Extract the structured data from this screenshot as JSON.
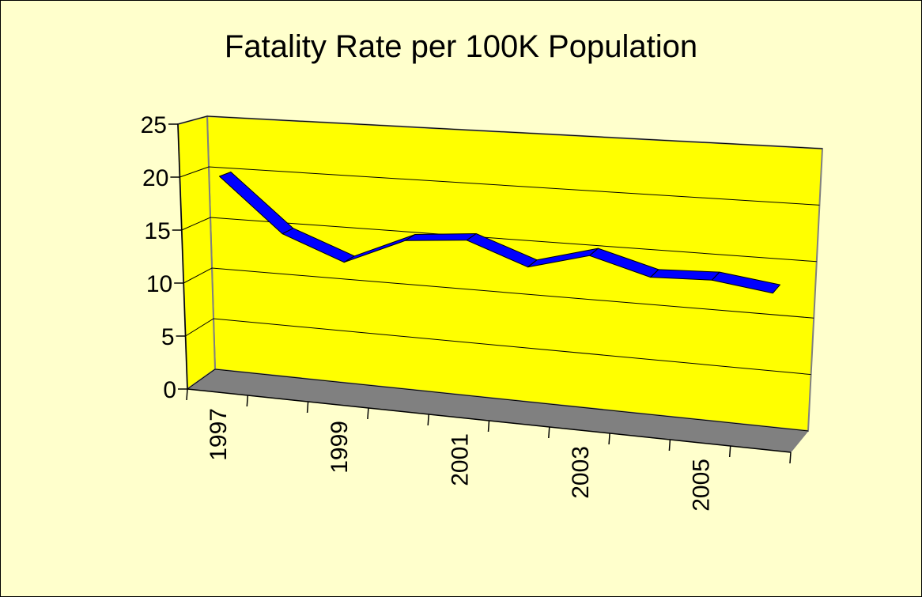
{
  "chart_data": {
    "type": "line",
    "title": "Fatality Rate per 100K Population",
    "categories": [
      "1997",
      null,
      "1999",
      null,
      "2001",
      null,
      "2003",
      null,
      "2005",
      null
    ],
    "series": [
      {
        "color": "#0000ff",
        "values": [
          20,
          15,
          12.8,
          15.3,
          15.8,
          13.8,
          15.3,
          13.8,
          14,
          13.3
        ]
      }
    ],
    "ylim": [
      0,
      25
    ],
    "yticks": [
      0,
      5,
      10,
      15,
      20,
      25
    ],
    "grid": true
  }
}
